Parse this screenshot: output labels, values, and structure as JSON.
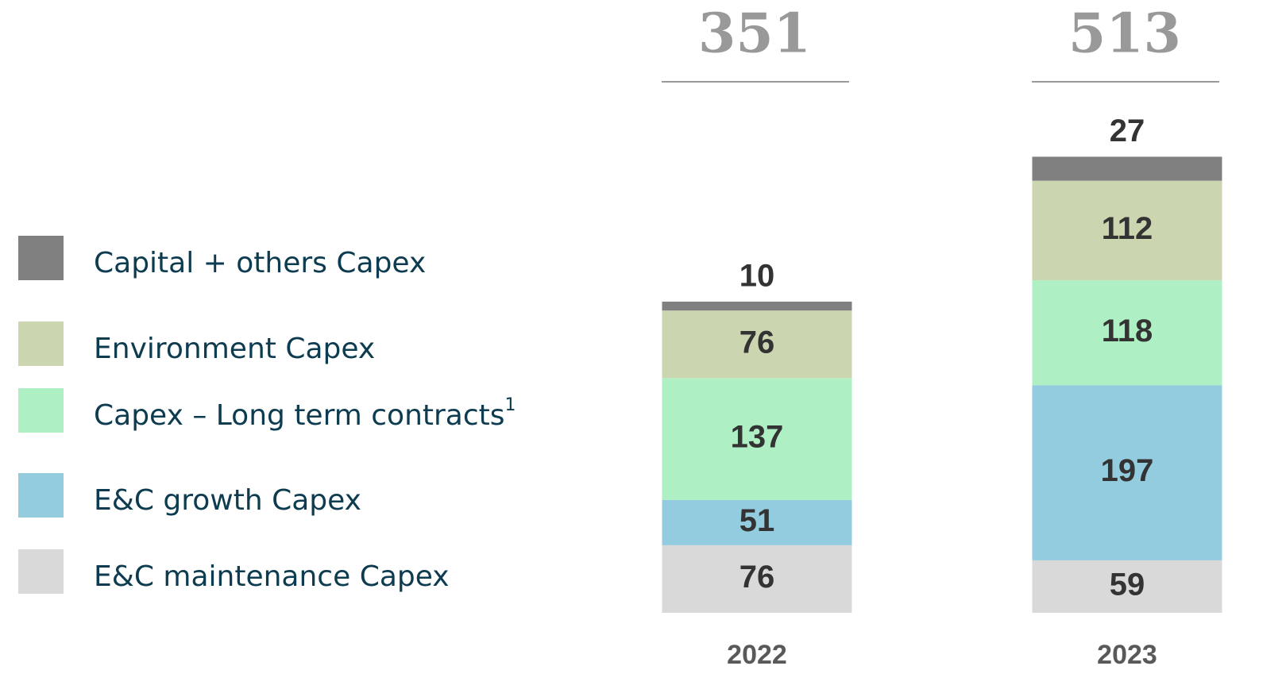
{
  "chart_data": {
    "type": "stacked_bar",
    "categories": [
      "2022",
      "2023"
    ],
    "totals": [
      351,
      513
    ],
    "series": [
      {
        "name": "E&C maintenance Capex",
        "color": "#d9d9d9",
        "values": [
          76,
          59
        ]
      },
      {
        "name": "E&C growth Capex",
        "color": "#93ccdf",
        "values": [
          51,
          197
        ]
      },
      {
        "name": "Capex – Long term contracts",
        "name_note": "1",
        "color": "#aef0c4",
        "values": [
          137,
          118
        ]
      },
      {
        "name": "Environment Capex",
        "color": "#cbd5b0",
        "values": [
          76,
          112
        ]
      },
      {
        "name": "Capital + others Capex",
        "color": "#808080",
        "values": [
          10,
          27
        ]
      }
    ]
  }
}
